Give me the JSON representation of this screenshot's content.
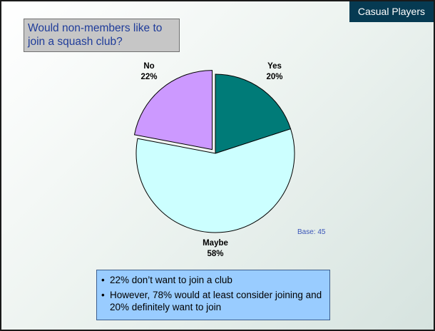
{
  "badge": "Casual Players",
  "question": "Would non-members like to join a squash club?",
  "base_note": "Base: 45",
  "findings": [
    "22% don’t want to join a club",
    "However, 78% would at least consider joining and 20% definitely want to join"
  ],
  "chart_data": {
    "type": "pie",
    "title": "Would non-members like to join a squash club?",
    "slices": [
      {
        "label": "Yes",
        "value": 20,
        "value_label": "20%",
        "color": "#007b78",
        "exploded": false
      },
      {
        "label": "Maybe",
        "value": 58,
        "value_label": "58%",
        "color": "#ccffff",
        "exploded": false
      },
      {
        "label": "No",
        "value": 22,
        "value_label": "22%",
        "color": "#cc99ff",
        "exploded": true
      }
    ]
  }
}
